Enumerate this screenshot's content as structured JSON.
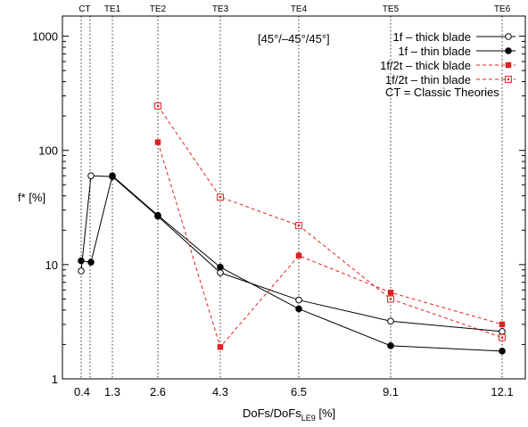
{
  "chart_data": {
    "type": "line",
    "annotation": "[45°/–45°/45°]",
    "xlabel_main": "DoFs/DoFs",
    "xlabel_sub": "LE9",
    "xlabel_unit": " [%]",
    "ylabel": "f* [%]",
    "y_scale": "log",
    "ylim": [
      1,
      1500
    ],
    "y_ticks": [
      {
        "value": 1,
        "label": "1"
      },
      {
        "value": 10,
        "label": "10"
      },
      {
        "value": 100,
        "label": "100"
      },
      {
        "value": 1000,
        "label": "1000"
      }
    ],
    "x_ticks": [
      "0.4",
      "1.3",
      "2.6",
      "4.3",
      "6.5",
      "9.1",
      "12.1"
    ],
    "top_ticks": [
      "CT",
      "TE1",
      "TE2",
      "TE3",
      "TE4",
      "TE5",
      "TE6"
    ],
    "note": "CT = Classic Theories",
    "series": [
      {
        "name": "1f – thick blade",
        "color": "#000000",
        "dash": "solid",
        "marker": "open-circle",
        "x": [
          0.4,
          0.4,
          1.3,
          2.6,
          4.3,
          6.5,
          9.1,
          12.1
        ],
        "y": [
          8.8,
          60,
          59,
          26.5,
          8.5,
          4.9,
          3.2,
          2.6
        ]
      },
      {
        "name": "1f – thin blade",
        "color": "#000000",
        "dash": "solid",
        "marker": "filled-circle",
        "x": [
          0.4,
          0.4,
          1.3,
          2.6,
          4.3,
          6.5,
          9.1,
          12.1
        ],
        "y": [
          10.8,
          10.5,
          60,
          27,
          9.5,
          4.1,
          1.95,
          1.75
        ]
      },
      {
        "name": "1f/2t – thick blade",
        "color": "#e02020",
        "dash": "dashed",
        "marker": "filled-square",
        "x": [
          2.6,
          4.3,
          6.5,
          9.1,
          12.1
        ],
        "y": [
          118,
          1.9,
          12,
          5.7,
          3.0
        ]
      },
      {
        "name": "1f/2t – thin blade",
        "color": "#e02020",
        "dash": "dashed",
        "marker": "open-square",
        "x": [
          2.6,
          4.3,
          6.5,
          9.1,
          12.1
        ],
        "y": [
          245,
          39,
          22,
          5.0,
          2.3
        ]
      }
    ]
  }
}
